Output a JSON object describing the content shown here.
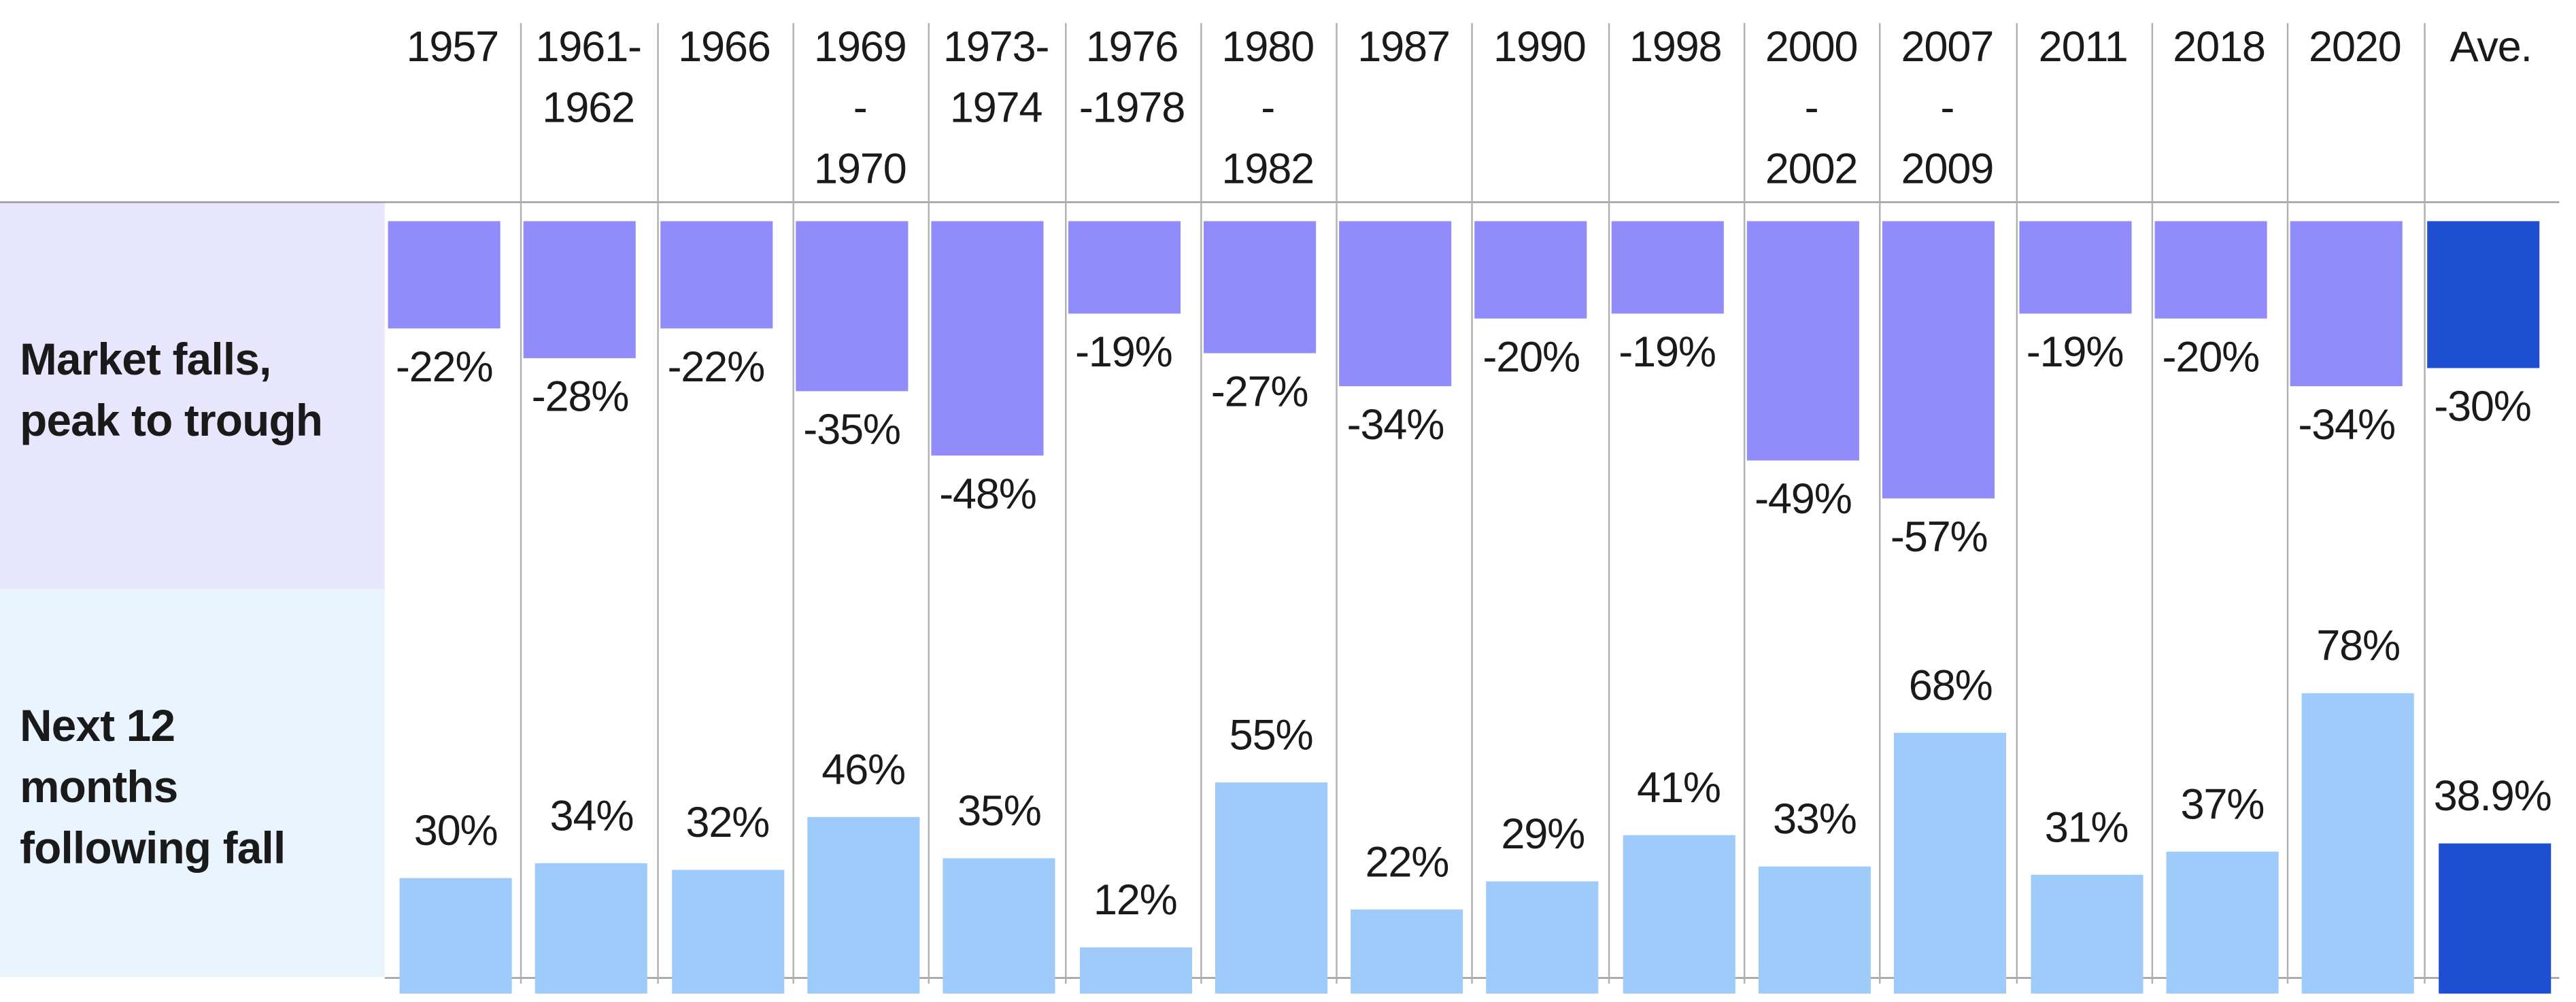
{
  "chart_data": {
    "type": "bar",
    "title": "",
    "categories": [
      "1957",
      "1961-1962",
      "1966",
      "1969-1970",
      "1973-1974",
      "1976-1978",
      "1980-1982",
      "1987",
      "1990",
      "1998",
      "2000-2002",
      "2007-2009",
      "2011",
      "2018",
      "2020",
      "Ave."
    ],
    "category_lines": [
      [
        "1957"
      ],
      [
        "1961-",
        "1962"
      ],
      [
        "1966"
      ],
      [
        "1969",
        "-",
        "1970"
      ],
      [
        "1973-",
        "1974"
      ],
      [
        "1976",
        "-1978"
      ],
      [
        "1980",
        "-",
        "1982"
      ],
      [
        "1987"
      ],
      [
        "1990"
      ],
      [
        "1998"
      ],
      [
        "2000",
        "-",
        "2002"
      ],
      [
        "2007",
        "-",
        "2009"
      ],
      [
        "2011"
      ],
      [
        "2018"
      ],
      [
        "2020"
      ],
      [
        "Ave."
      ]
    ],
    "series": [
      {
        "name": "Market falls, peak to trough",
        "label_lines": [
          "Market falls,",
          "peak to trough"
        ],
        "values": [
          -22,
          -28,
          -22,
          -35,
          -48,
          -19,
          -27,
          -34,
          -20,
          -19,
          -49,
          -57,
          -19,
          -20,
          -34,
          -30
        ],
        "labels": [
          "-22%",
          "-28%",
          "-22%",
          "-35%",
          "-48%",
          "-19%",
          "-27%",
          "-34%",
          "-20%",
          "-19%",
          "-49%",
          "-57%",
          "-19%",
          "-20%",
          "-34%",
          "-30%"
        ]
      },
      {
        "name": "Next 12 months following fall",
        "label_lines": [
          "Next 12",
          "months",
          "following fall"
        ],
        "values": [
          30,
          34,
          32,
          46,
          35,
          12,
          55,
          22,
          29,
          41,
          33,
          68,
          31,
          37,
          78,
          38.9
        ],
        "labels": [
          "30%",
          "34%",
          "32%",
          "46%",
          "35%",
          "12%",
          "55%",
          "22%",
          "29%",
          "41%",
          "33%",
          "68%",
          "31%",
          "37%",
          "78%",
          "38.9%"
        ]
      }
    ],
    "grid": true,
    "colors": {
      "falls": "#918cfb",
      "recovery": "#9ecbfa",
      "average": "#1e4fd1",
      "panel_top": "#e8e6fd",
      "panel_bottom": "#eaf4fe"
    }
  }
}
